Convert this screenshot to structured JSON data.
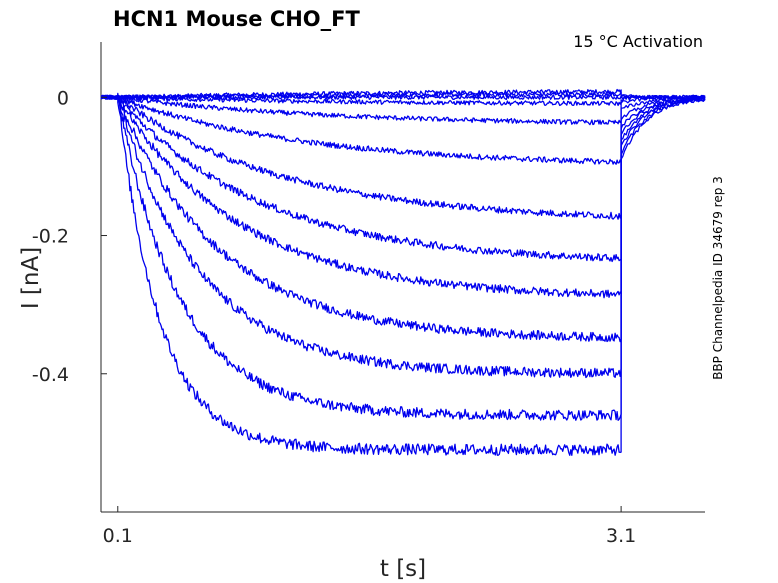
{
  "chart_data": {
    "type": "line",
    "title": "HCN1  Mouse  CHO_FT",
    "annotation": "15 °C  Activation",
    "side_label": "BBP Channelpedia ID 34679 rep 3",
    "xlabel": "t [s]",
    "ylabel": "I [nA]",
    "xlim": [
      0.0,
      3.6
    ],
    "ylim": [
      -0.6,
      0.08
    ],
    "x_ticks": [
      0.1,
      3.1
    ],
    "x_tick_labels": [
      "0.1",
      "3.1"
    ],
    "y_ticks": [
      0,
      -0.2,
      -0.4
    ],
    "y_tick_labels": [
      "0",
      "-0.2",
      "-0.4"
    ],
    "grid": false,
    "color": "#0000ee",
    "pulse_start": 0.1,
    "pulse_end": 3.1,
    "sweep_steady_state": [
      0.01,
      0.005,
      0.0,
      -0.01,
      -0.04,
      -0.1,
      -0.18,
      -0.24,
      -0.29,
      -0.35,
      -0.4,
      -0.46,
      -0.51
    ]
  }
}
